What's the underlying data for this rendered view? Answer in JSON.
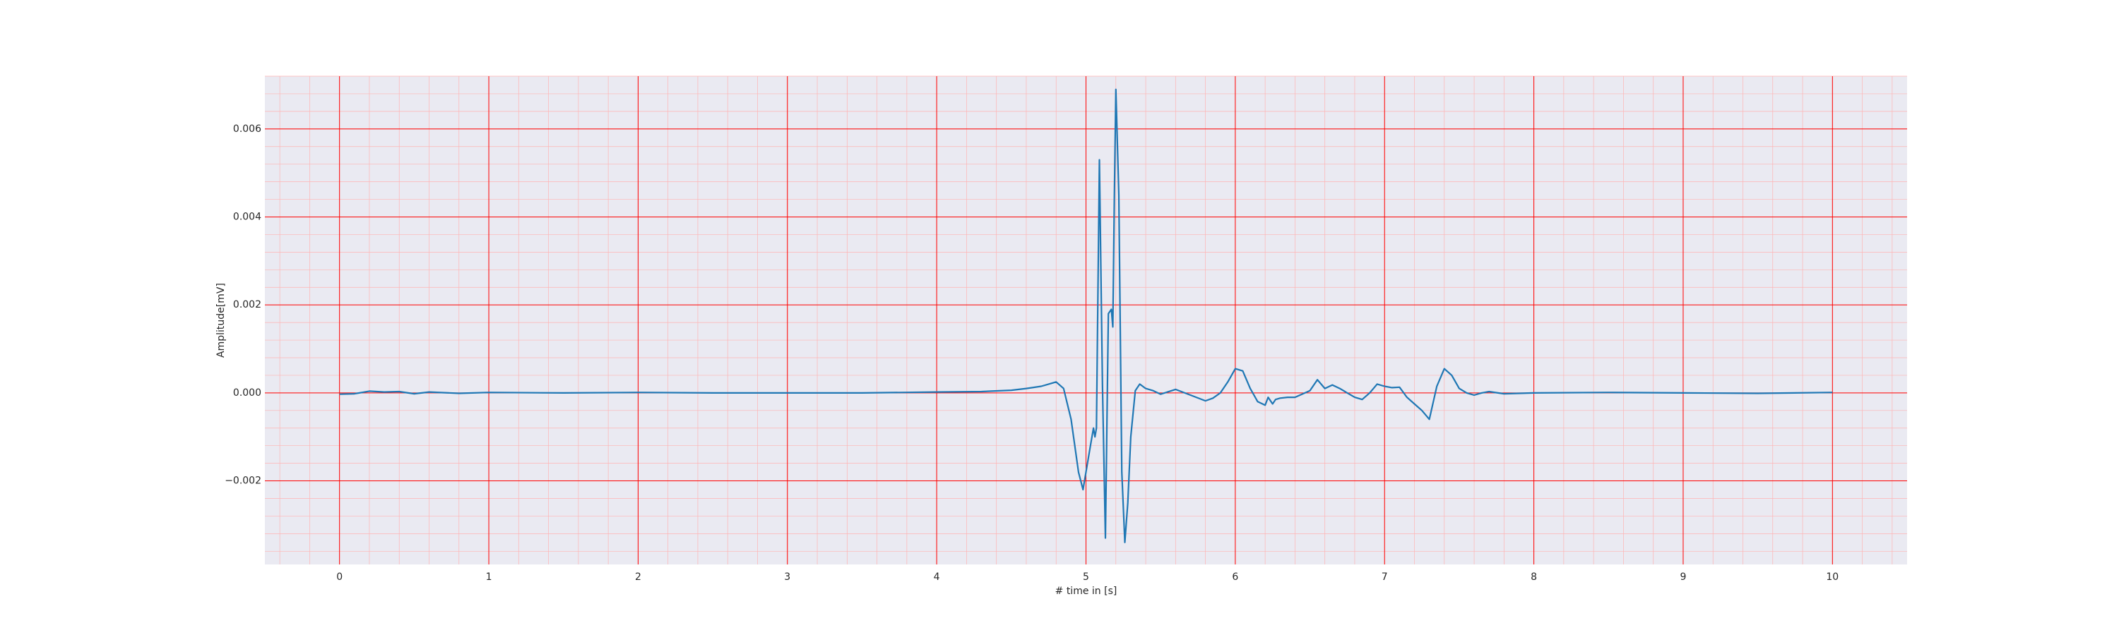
{
  "chart_data": {
    "type": "line",
    "title": "",
    "xlabel": "# time in [s]",
    "ylabel": "Amplitude[mV]",
    "xlim": [
      -0.5,
      10.5
    ],
    "ylim": [
      -0.0039,
      0.0072
    ],
    "x_ticks": [
      0,
      1,
      2,
      3,
      4,
      5,
      6,
      7,
      8,
      9,
      10
    ],
    "x_tick_labels": [
      "0",
      "1",
      "2",
      "3",
      "4",
      "5",
      "6",
      "7",
      "8",
      "9",
      "10"
    ],
    "y_ticks": [
      -0.002,
      0.0,
      0.002,
      0.004,
      0.006
    ],
    "y_tick_labels": [
      "−0.002",
      "0.000",
      "0.002",
      "0.004",
      "0.006"
    ],
    "grid": true,
    "legend": "none",
    "colors": {
      "background": "#eaeaf2",
      "major_grid": "#ff0000",
      "minor_grid": "#ffb3b3",
      "line": "#1f77b4"
    },
    "series": [
      {
        "x": [
          0.0,
          0.1,
          0.2,
          0.3,
          0.4,
          0.5,
          0.6,
          0.8,
          1.0,
          1.5,
          2.0,
          2.5,
          3.0,
          3.5,
          4.0,
          4.3,
          4.5,
          4.6,
          4.7,
          4.75,
          4.8,
          4.85,
          4.9,
          4.95,
          4.98,
          5.0,
          5.03,
          5.05,
          5.06,
          5.07,
          5.09,
          5.11,
          5.13,
          5.15,
          5.17,
          5.18,
          5.19,
          5.2,
          5.22,
          5.24,
          5.26,
          5.28,
          5.3,
          5.33,
          5.36,
          5.4,
          5.45,
          5.5,
          5.6,
          5.7,
          5.8,
          5.85,
          5.9,
          5.95,
          6.0,
          6.05,
          6.1,
          6.15,
          6.2,
          6.22,
          6.25,
          6.27,
          6.3,
          6.35,
          6.4,
          6.5,
          6.55,
          6.6,
          6.65,
          6.7,
          6.75,
          6.8,
          6.85,
          6.9,
          6.95,
          7.0,
          7.05,
          7.1,
          7.15,
          7.2,
          7.25,
          7.3,
          7.35,
          7.4,
          7.45,
          7.5,
          7.55,
          7.6,
          7.65,
          7.7,
          7.8,
          8.0,
          8.5,
          9.0,
          9.5,
          10.0
        ],
        "y": [
          -3e-05,
          -2e-05,
          4e-05,
          2e-05,
          3e-05,
          -2e-05,
          2e-05,
          -1e-05,
          1e-05,
          0.0,
          1e-05,
          0.0,
          0.0,
          0.0,
          2e-05,
          3e-05,
          6e-05,
          0.0001,
          0.00015,
          0.0002,
          0.00025,
          0.0001,
          -0.0006,
          -0.0018,
          -0.0022,
          -0.0018,
          -0.0012,
          -0.0008,
          -0.001,
          -0.0008,
          0.0053,
          0.0002,
          -0.0033,
          0.0018,
          0.0019,
          0.0015,
          0.0045,
          0.0069,
          0.0045,
          -0.0018,
          -0.0034,
          -0.0025,
          -0.001,
          5e-05,
          0.0002,
          0.0001,
          5e-05,
          -3e-05,
          8e-05,
          -5e-05,
          -0.00018,
          -0.00012,
          0.0,
          0.00025,
          0.00055,
          0.0005,
          0.0001,
          -0.0002,
          -0.00028,
          -0.0001,
          -0.00025,
          -0.00015,
          -0.00012,
          -0.0001,
          -0.0001,
          5e-05,
          0.0003,
          0.0001,
          0.00018,
          0.0001,
          0.0,
          -0.0001,
          -0.00015,
          0.0,
          0.0002,
          0.00015,
          0.00012,
          0.00013,
          -0.0001,
          -0.00025,
          -0.0004,
          -0.0006,
          0.00015,
          0.00055,
          0.0004,
          0.0001,
          0.0,
          -5e-05,
          0.0,
          3e-05,
          -2e-05,
          0.0,
          1e-05,
          0.0,
          -1e-05,
          1e-05
        ]
      }
    ]
  }
}
